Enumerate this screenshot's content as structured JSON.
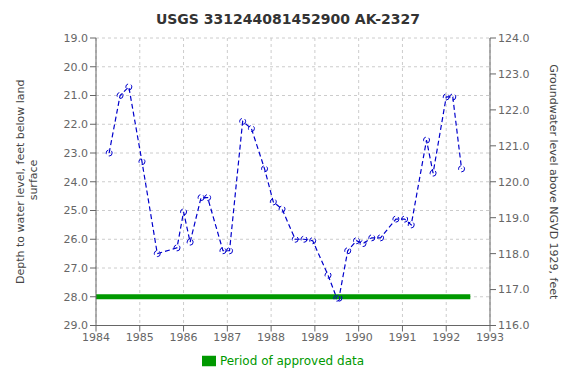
{
  "chart_data": {
    "type": "line",
    "title": "USGS 331244081452900 AK-2327",
    "y_label": "Depth to water level, feet below land\n surface",
    "y2_label": "Groundwater level above NGVD 1929, feet",
    "xlim": [
      1984,
      1993
    ],
    "xticks": [
      1984,
      1985,
      1986,
      1987,
      1988,
      1989,
      1990,
      1991,
      1992,
      1993
    ],
    "ylim": [
      29.0,
      19.0
    ],
    "yticks": [
      {
        "value": 19.0,
        "label": "19.0"
      },
      {
        "value": 20.0,
        "label": "20.0"
      },
      {
        "value": 21.0,
        "label": "21.0"
      },
      {
        "value": 22.0,
        "label": "22.0"
      },
      {
        "value": 23.0,
        "label": "23.0"
      },
      {
        "value": 24.0,
        "label": "24.0"
      },
      {
        "value": 25.0,
        "label": "25.0"
      },
      {
        "value": 26.0,
        "label": "26.0"
      },
      {
        "value": 27.0,
        "label": "27.0"
      },
      {
        "value": 28.0,
        "label": "28.0"
      },
      {
        "value": 29.0,
        "label": "29.0"
      }
    ],
    "y2lim": [
      116.0,
      124.0
    ],
    "y2ticks": [
      {
        "value": 116.0,
        "label": "116.0"
      },
      {
        "value": 117.0,
        "label": "117.0"
      },
      {
        "value": 118.0,
        "label": "118.0"
      },
      {
        "value": 119.0,
        "label": "119.0"
      },
      {
        "value": 120.0,
        "label": "120.0"
      },
      {
        "value": 121.0,
        "label": "121.0"
      },
      {
        "value": 122.0,
        "label": "122.0"
      },
      {
        "value": 123.0,
        "label": "123.0"
      },
      {
        "value": 124.0,
        "label": "124.0"
      }
    ],
    "grid": true,
    "legend": "bottom",
    "series": [
      {
        "color": "#0000cc",
        "line_style": "dashed",
        "marker": "circle",
        "x": [
          1984.3,
          1984.55,
          1984.75,
          1985.05,
          1985.4,
          1985.85,
          1986.0,
          1986.15,
          1986.4,
          1986.55,
          1986.9,
          1987.05,
          1987.35,
          1987.55,
          1987.85,
          1988.05,
          1988.25,
          1988.55,
          1988.75,
          1988.95,
          1989.3,
          1989.5,
          1989.55,
          1989.75,
          1989.95,
          1990.1,
          1990.3,
          1990.5,
          1990.85,
          1991.05,
          1991.2,
          1991.55,
          1991.7,
          1992.0,
          1992.15,
          1992.35
        ],
        "values": [
          23.0,
          21.0,
          20.7,
          23.3,
          26.5,
          26.3,
          25.05,
          26.1,
          24.55,
          24.55,
          26.4,
          26.4,
          21.9,
          22.15,
          23.55,
          24.7,
          24.95,
          26.0,
          26.0,
          26.05,
          27.25,
          28.05,
          28.05,
          26.4,
          26.05,
          26.15,
          25.95,
          25.95,
          25.3,
          25.3,
          25.5,
          22.55,
          23.7,
          21.05,
          21.05,
          23.55
        ]
      },
      {
        "name": "Period of approved data",
        "color": "#009900",
        "line_style": "solid",
        "marker": "none",
        "x": [
          1984.0,
          1992.55
        ],
        "values": [
          28.0,
          28.0
        ]
      }
    ]
  }
}
